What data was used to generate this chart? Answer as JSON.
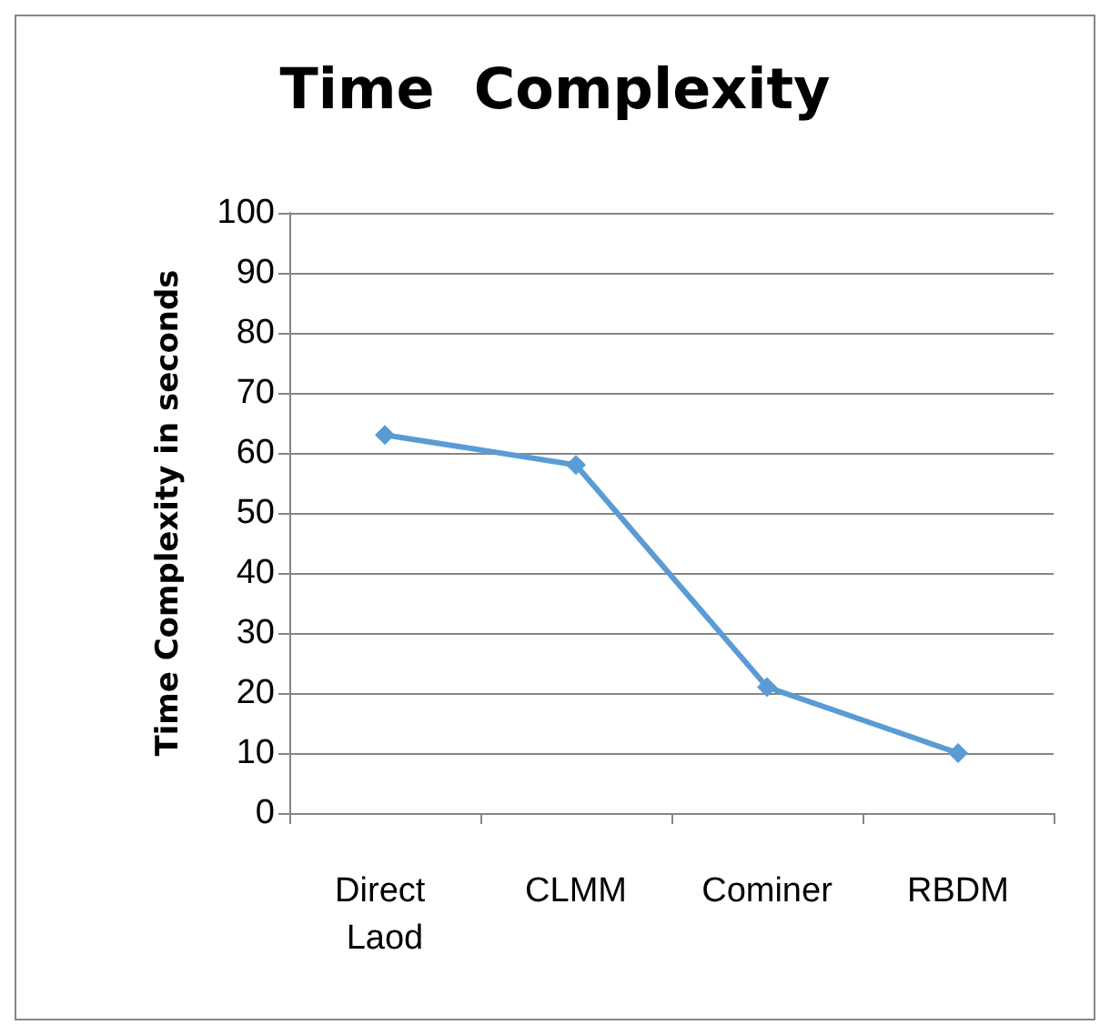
{
  "chart_data": {
    "type": "line",
    "title": "Time  Complexity",
    "ylabel": "Time Complexity in seconds",
    "categories": [
      "Direct Laod",
      "CLMM",
      "Cominer",
      "RBDM"
    ],
    "series": [
      {
        "color": "#5b9bd5",
        "values": [
          63,
          58,
          21,
          10
        ]
      }
    ],
    "ylim": [
      0,
      100
    ],
    "yticks": [
      0,
      10,
      20,
      30,
      40,
      50,
      60,
      70,
      80,
      90,
      100
    ],
    "grid": "y",
    "marker": "diamond",
    "line_style": "solid"
  }
}
